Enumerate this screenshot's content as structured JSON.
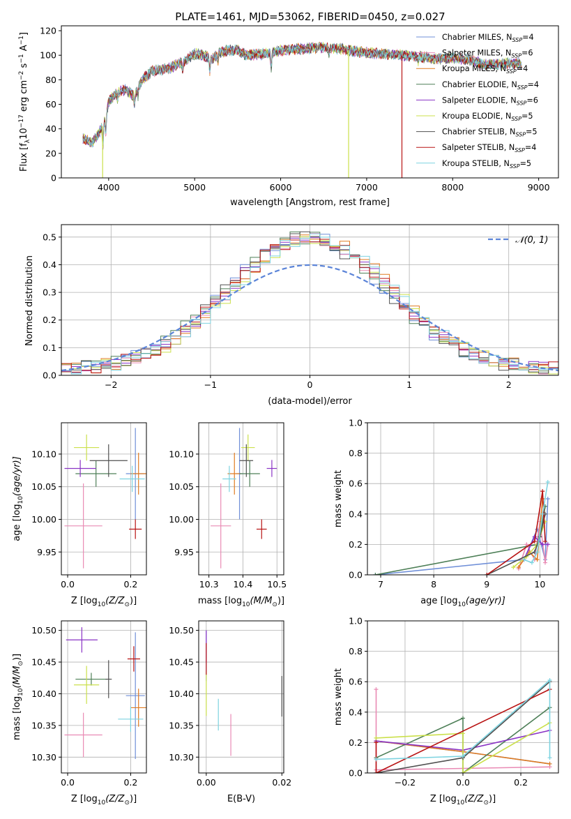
{
  "figure_title": "PLATE=1461, MJD=53062, FIBERID=0450, z=0.027",
  "colors": {
    "Chabrier MILES": "#6f8fd8",
    "Salpeter MILES": "#e98ab4",
    "Kroupa MILES": "#e07b20",
    "Chabrier ELODIE": "#4d7f57",
    "Salpeter ELODIE": "#8a33c5",
    "Kroupa ELODIE": "#cbe04b",
    "Chabrier STELIB": "#505050",
    "Salpeter STELIB": "#b81313",
    "Kroupa STELIB": "#7dd3e0",
    "normal": "#5b84d8"
  },
  "chart_data": [
    {
      "id": "spectrum",
      "type": "line",
      "xlabel": "wavelength [Angstrom, rest frame]",
      "ylabel": "Flux [f",
      "ylabel_parts": [
        "Flux [f",
        "λ",
        "10",
        "−17",
        " erg cm",
        "−2",
        " s",
        "−1",
        " A",
        "−1",
        "]"
      ],
      "xlim": [
        3450,
        9230
      ],
      "ylim": [
        0,
        124
      ],
      "xticks": [
        4000,
        5000,
        6000,
        7000,
        8000,
        9000
      ],
      "yticks": [
        0,
        20,
        40,
        60,
        80,
        100,
        120
      ],
      "grid": false,
      "legend_position": "top-right",
      "legend": [
        {
          "name": "Chabrier MILES",
          "nssp": "4"
        },
        {
          "name": "Salpeter MILES",
          "nssp": "6"
        },
        {
          "name": "Kroupa MILES",
          "nssp": "4"
        },
        {
          "name": "Chabrier ELODIE",
          "nssp": "4"
        },
        {
          "name": "Salpeter ELODIE",
          "nssp": "6"
        },
        {
          "name": "Kroupa ELODIE",
          "nssp": "5"
        },
        {
          "name": "Chabrier STELIB",
          "nssp": "5"
        },
        {
          "name": "Salpeter STELIB",
          "nssp": "4"
        },
        {
          "name": "Kroupa STELIB",
          "nssp": "5"
        }
      ],
      "legend_suffix": "N",
      "legend_sub": "SSP",
      "continuum": {
        "x": [
          3700,
          3800,
          3900,
          3950,
          4000,
          4100,
          4200,
          4300,
          4400,
          4500,
          4600,
          4700,
          4800,
          4900,
          5000,
          5100,
          5200,
          5300,
          5400,
          5500,
          5600,
          5800,
          6000,
          6200,
          6400,
          6600,
          6800,
          7000,
          7200,
          7400,
          7600,
          7800,
          8000,
          8200,
          8400,
          8600,
          8800
        ],
        "y": [
          32,
          28,
          38,
          45,
          62,
          70,
          72,
          67,
          81,
          87,
          88,
          89,
          93,
          96,
          101,
          100,
          97,
          102,
          104,
          104,
          100,
          101,
          104,
          105,
          106,
          106,
          104,
          102,
          101,
          100,
          99,
          97,
          98,
          96,
          92,
          93,
          93
        ]
      },
      "drop_lines": [
        {
          "series": "Kroupa ELODIE",
          "x": 6790
        },
        {
          "series": "Salpeter STELIB",
          "x": 7410
        },
        {
          "series": "Kroupa ELODIE",
          "x": 3930
        }
      ]
    },
    {
      "id": "residuals",
      "type": "line",
      "xlabel": "(data-model)/error",
      "ylabel": "Normed distribution",
      "xlim": [
        -2.5,
        2.5
      ],
      "ylim": [
        0,
        0.545
      ],
      "xticks": [
        -2,
        -1,
        0,
        1,
        2
      ],
      "xtick_labels": [
        "−2",
        "−1",
        "0",
        "1",
        "2"
      ],
      "yticks": [
        0.0,
        0.1,
        0.2,
        0.3,
        0.4,
        0.5
      ],
      "ytick_labels": [
        "0.0",
        "0.1",
        "0.2",
        "0.3",
        "0.4",
        "0.5"
      ],
      "grid": true,
      "legend_position": "top-right",
      "normal_label": "𝒩(0, 1)",
      "bin_width": 0.1,
      "bins_start": -2.5,
      "bins_count": 50
    },
    {
      "id": "age-vs-Z",
      "type": "scatter",
      "xlabel": "Z [log",
      "ylabel": "age  [log",
      "xlim": [
        -0.02,
        0.25
      ],
      "ylim": [
        9.915,
        10.148
      ],
      "xticks": [
        0.0,
        0.2
      ],
      "xtick_labels": [
        "0.0",
        "0.2"
      ],
      "yticks": [
        9.95,
        10.0,
        10.05,
        10.1
      ],
      "ytick_labels": [
        "9.95",
        "10.00",
        "10.05",
        "10.10"
      ],
      "grid": true,
      "points": [
        {
          "series": "Chabrier MILES",
          "x": 0.215,
          "y": 10.07,
          "xerr": 0.03,
          "yerr": 0.07
        },
        {
          "series": "Salpeter MILES",
          "x": 0.05,
          "y": 9.99,
          "xerr": 0.06,
          "yerr": 0.065
        },
        {
          "series": "Kroupa MILES",
          "x": 0.225,
          "y": 10.07,
          "xerr": 0.025,
          "yerr": 0.032
        },
        {
          "series": "Chabrier ELODIE",
          "x": 0.09,
          "y": 10.07,
          "xerr": 0.065,
          "yerr": 0.02
        },
        {
          "series": "Salpeter ELODIE",
          "x": 0.04,
          "y": 10.078,
          "xerr": 0.05,
          "yerr": 0.013
        },
        {
          "series": "Kroupa ELODIE",
          "x": 0.06,
          "y": 10.11,
          "xerr": 0.04,
          "yerr": 0.02
        },
        {
          "series": "Chabrier STELIB",
          "x": 0.13,
          "y": 10.09,
          "xerr": 0.06,
          "yerr": 0.025
        },
        {
          "series": "Salpeter STELIB",
          "x": 0.215,
          "y": 9.985,
          "xerr": 0.02,
          "yerr": 0.015
        },
        {
          "series": "Kroupa STELIB",
          "x": 0.205,
          "y": 10.062,
          "xerr": 0.04,
          "yerr": 0.02
        }
      ]
    },
    {
      "id": "age-vs-mass",
      "type": "scatter",
      "xlabel": "mass [log",
      "xlim": [
        10.27,
        10.52
      ],
      "ylim": [
        9.915,
        10.148
      ],
      "xticks": [
        10.3,
        10.4,
        10.5
      ],
      "xtick_labels": [
        "10.3",
        "10.4",
        "10.5"
      ],
      "yticks": [
        9.95,
        10.0,
        10.05,
        10.1
      ],
      "ytick_labels": [
        "9.95",
        "10.00",
        "10.05",
        "10.10"
      ],
      "grid": true,
      "points": [
        {
          "series": "Chabrier MILES",
          "x": 10.39,
          "y": 10.07,
          "xerr": 0.01,
          "yerr": 0.07
        },
        {
          "series": "Salpeter MILES",
          "x": 10.335,
          "y": 9.99,
          "xerr": 0.03,
          "yerr": 0.065
        },
        {
          "series": "Kroupa MILES",
          "x": 10.375,
          "y": 10.07,
          "xerr": 0.02,
          "yerr": 0.032
        },
        {
          "series": "Chabrier ELODIE",
          "x": 10.42,
          "y": 10.07,
          "xerr": 0.03,
          "yerr": 0.02
        },
        {
          "series": "Salpeter ELODIE",
          "x": 10.485,
          "y": 10.078,
          "xerr": 0.015,
          "yerr": 0.013
        },
        {
          "series": "Kroupa ELODIE",
          "x": 10.415,
          "y": 10.11,
          "xerr": 0.02,
          "yerr": 0.02
        },
        {
          "series": "Chabrier STELIB",
          "x": 10.41,
          "y": 10.09,
          "xerr": 0.02,
          "yerr": 0.025
        },
        {
          "series": "Salpeter STELIB",
          "x": 10.455,
          "y": 9.985,
          "xerr": 0.015,
          "yerr": 0.015
        },
        {
          "series": "Kroupa STELIB",
          "x": 10.36,
          "y": 10.062,
          "xerr": 0.02,
          "yerr": 0.02
        }
      ]
    },
    {
      "id": "weight-vs-age",
      "type": "line",
      "xlabel": "age  [log",
      "ylabel": "mass weight",
      "xlim": [
        6.75,
        10.35
      ],
      "ylim": [
        0,
        1.0
      ],
      "xticks": [
        7,
        8,
        9,
        10
      ],
      "xtick_labels": [
        "7",
        "8",
        "9",
        "10"
      ],
      "yticks": [
        0.0,
        0.2,
        0.4,
        0.6,
        0.8,
        1.0
      ],
      "ytick_labels": [
        "0.0",
        "0.2",
        "0.4",
        "0.6",
        "0.8",
        "1.0"
      ],
      "grid": true,
      "series": [
        {
          "name": "Chabrier MILES",
          "x": [
            6.9,
            9.7,
            9.95,
            10.1,
            10.15
          ],
          "y": [
            0.0,
            0.1,
            0.3,
            0.1,
            0.5
          ]
        },
        {
          "name": "Salpeter MILES",
          "x": [
            9.6,
            9.75,
            9.9,
            10.0,
            10.1,
            10.15
          ],
          "y": [
            0.04,
            0.2,
            0.1,
            0.35,
            0.08,
            0.2
          ]
        },
        {
          "name": "Kroupa MILES",
          "x": [
            9.6,
            9.8,
            9.95,
            10.05
          ],
          "y": [
            0.05,
            0.15,
            0.1,
            0.5
          ]
        },
        {
          "name": "Chabrier ELODIE",
          "x": [
            6.9,
            9.95,
            10.05,
            10.1
          ],
          "y": [
            0.0,
            0.2,
            0.35,
            0.45
          ]
        },
        {
          "name": "Salpeter ELODIE",
          "x": [
            9.7,
            9.9,
            10.05,
            10.15
          ],
          "y": [
            0.1,
            0.25,
            0.2,
            0.2
          ]
        },
        {
          "name": "Kroupa ELODIE",
          "x": [
            9.5,
            9.75,
            9.95,
            10.1
          ],
          "y": [
            0.05,
            0.12,
            0.2,
            0.35
          ]
        },
        {
          "name": "Chabrier STELIB",
          "x": [
            9.0,
            9.9,
            10.0,
            10.1
          ],
          "y": [
            0.0,
            0.15,
            0.25,
            0.4
          ]
        },
        {
          "name": "Salpeter STELIB",
          "x": [
            9.0,
            9.9,
            10.05,
            10.1
          ],
          "y": [
            0.0,
            0.22,
            0.55,
            0.22
          ]
        },
        {
          "name": "Kroupa STELIB",
          "x": [
            9.7,
            9.85,
            9.95,
            10.05,
            10.15
          ],
          "y": [
            0.1,
            0.08,
            0.15,
            0.4,
            0.61
          ]
        }
      ]
    },
    {
      "id": "mass-vs-Z",
      "type": "scatter",
      "xlabel": "Z [log",
      "ylabel": "mass [log",
      "xlim": [
        -0.02,
        0.25
      ],
      "ylim": [
        10.275,
        10.515
      ],
      "xticks": [
        0.0,
        0.2
      ],
      "xtick_labels": [
        "0.0",
        "0.2"
      ],
      "yticks": [
        10.3,
        10.35,
        10.4,
        10.45,
        10.5
      ],
      "ytick_labels": [
        "10.30",
        "10.35",
        "10.40",
        "10.45",
        "10.50"
      ],
      "grid": true,
      "points": [
        {
          "series": "Chabrier MILES",
          "x": 0.215,
          "y": 10.397,
          "xerr": 0.03,
          "yerr": 0.1
        },
        {
          "series": "Salpeter MILES",
          "x": 0.05,
          "y": 10.335,
          "xerr": 0.06,
          "yerr": 0.035
        },
        {
          "series": "Kroupa MILES",
          "x": 0.225,
          "y": 10.378,
          "xerr": 0.025,
          "yerr": 0.03
        },
        {
          "series": "Chabrier ELODIE",
          "x": 0.075,
          "y": 10.423,
          "xerr": 0.05,
          "yerr": 0.01
        },
        {
          "series": "Salpeter ELODIE",
          "x": 0.045,
          "y": 10.485,
          "xerr": 0.05,
          "yerr": 0.02
        },
        {
          "series": "Kroupa ELODIE",
          "x": 0.06,
          "y": 10.414,
          "xerr": 0.04,
          "yerr": 0.03
        },
        {
          "series": "Chabrier STELIB",
          "x": 0.13,
          "y": 10.423,
          "xerr": 0.01,
          "yerr": 0.03
        },
        {
          "series": "Salpeter STELIB",
          "x": 0.21,
          "y": 10.455,
          "xerr": 0.02,
          "yerr": 0.02
        },
        {
          "series": "Kroupa STELIB",
          "x": 0.2,
          "y": 10.36,
          "xerr": 0.04,
          "yerr": 0.02
        }
      ]
    },
    {
      "id": "mass-vs-ebv",
      "type": "scatter",
      "xlabel": "E(B-V)",
      "xlim": [
        -0.002,
        0.0205
      ],
      "ylim": [
        10.275,
        10.515
      ],
      "xticks": [
        0.0,
        0.02
      ],
      "xtick_labels": [
        "0.00",
        "0.02"
      ],
      "yticks": [
        10.3,
        10.35,
        10.4,
        10.45,
        10.5
      ],
      "ytick_labels": [
        "10.30",
        "10.35",
        "10.40",
        "10.45",
        "10.50"
      ],
      "grid": true,
      "points": [
        {
          "series": "Chabrier MILES",
          "x": 0.0,
          "y": 10.46,
          "xerr": 0,
          "yerr": 0.04
        },
        {
          "series": "Salpeter MILES",
          "x": 0.0065,
          "y": 10.335,
          "xerr": 0,
          "yerr": 0.033
        },
        {
          "series": "Salpeter ELODIE",
          "x": 0.0,
          "y": 10.475,
          "xerr": 0,
          "yerr": 0.025
        },
        {
          "series": "Kroupa ELODIE",
          "x": 0.0,
          "y": 10.4,
          "xerr": 0,
          "yerr": 0.035
        },
        {
          "series": "Chabrier STELIB",
          "x": 0.02,
          "y": 10.396,
          "xerr": 0,
          "yerr": 0.032
        },
        {
          "series": "Salpeter STELIB",
          "x": 0.0,
          "y": 10.455,
          "xerr": 0,
          "yerr": 0.025
        },
        {
          "series": "Kroupa STELIB",
          "x": 0.0032,
          "y": 10.367,
          "xerr": 0,
          "yerr": 0.025
        }
      ]
    },
    {
      "id": "weight-vs-Z",
      "type": "line",
      "xlabel": "Z [log",
      "ylabel": "mass weight",
      "xlim": [
        -0.33,
        0.33
      ],
      "ylim": [
        0,
        1.0
      ],
      "xticks": [
        -0.2,
        0.0,
        0.2
      ],
      "xtick_labels": [
        "−0.2",
        "0.0",
        "0.2"
      ],
      "yticks": [
        0.0,
        0.2,
        0.4,
        0.6,
        0.8,
        1.0
      ],
      "ytick_labels": [
        "0.0",
        "0.2",
        "0.4",
        "0.6",
        "0.8",
        "1.0"
      ],
      "grid": true,
      "series": [
        {
          "name": "Chabrier MILES",
          "x": [
            -0.3,
            0.0,
            0.3
          ],
          "y": [
            0.21,
            0.14,
            0.06
          ]
        },
        {
          "name": "Salpeter MILES",
          "x": [
            -0.3,
            -0.3,
            0.0,
            0.3
          ],
          "y": [
            0.55,
            0.02,
            0.03,
            0.04
          ]
        },
        {
          "name": "Kroupa MILES",
          "x": [
            -0.3,
            0.0,
            0.3
          ],
          "y": [
            0.21,
            0.14,
            0.06
          ]
        },
        {
          "name": "Chabrier ELODIE",
          "x": [
            -0.3,
            0.0,
            0.0,
            0.3
          ],
          "y": [
            0.1,
            0.36,
            0.0,
            0.43
          ]
        },
        {
          "name": "Salpeter ELODIE",
          "x": [
            -0.3,
            0.0,
            0.3
          ],
          "y": [
            0.21,
            0.15,
            0.28
          ]
        },
        {
          "name": "Kroupa ELODIE",
          "x": [
            -0.3,
            0.0,
            0.0,
            0.3
          ],
          "y": [
            0.23,
            0.26,
            0.0,
            0.33
          ]
        },
        {
          "name": "Chabrier STELIB",
          "x": [
            -0.3,
            0.0,
            0.3
          ],
          "y": [
            0.0,
            0.1,
            0.6
          ]
        },
        {
          "name": "Salpeter STELIB",
          "x": [
            -0.3,
            -0.3,
            0.3
          ],
          "y": [
            0.2,
            0.0,
            0.55
          ]
        },
        {
          "name": "Kroupa STELIB",
          "x": [
            -0.3,
            0.0,
            0.3,
            0.3
          ],
          "y": [
            0.09,
            0.11,
            0.61,
            0.1
          ]
        }
      ]
    }
  ],
  "label_parts": {
    "log10": "10",
    "z_over_zsun": "(Z/Z",
    "sun": "⊙",
    "close_z": ")]",
    "age_yr": "(age/yr)]",
    "m_over_msun": "(M/M",
    "close_m": ")]"
  }
}
